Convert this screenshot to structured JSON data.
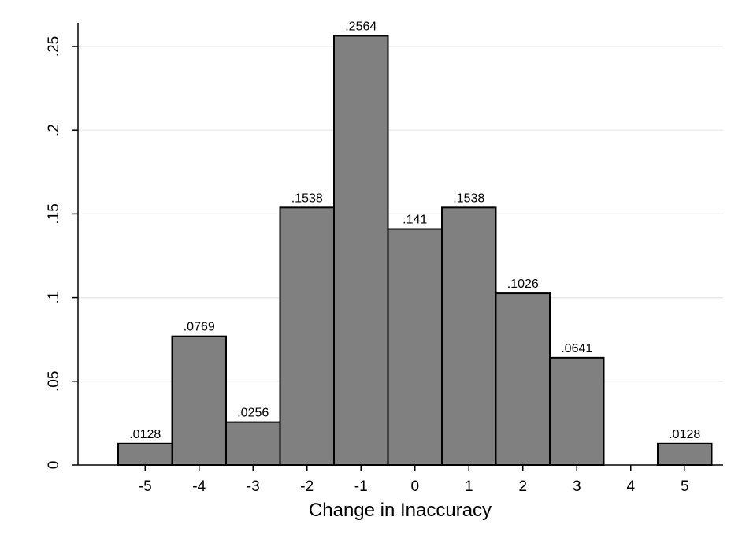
{
  "chart_data": {
    "type": "bar",
    "title": "",
    "xlabel": "Change in Inaccuracy",
    "ylabel": "",
    "categories": [
      "-5",
      "-4",
      "-3",
      "-2",
      "-1",
      "0",
      "1",
      "2",
      "3",
      "4",
      "5"
    ],
    "values": [
      0.0128,
      0.0769,
      0.0256,
      0.1538,
      0.2564,
      0.141,
      0.1538,
      0.1026,
      0.0641,
      0,
      0.0128
    ],
    "data_labels": [
      ".0128",
      ".0769",
      ".0256",
      ".1538",
      ".2564",
      ".141",
      ".1538",
      ".1026",
      ".0641",
      "",
      ".0128"
    ],
    "ylim": [
      0,
      0.26
    ],
    "yticks": [
      0,
      0.05,
      0.1,
      0.15,
      0.2,
      0.25
    ],
    "ytick_labels": [
      "0",
      ".05",
      ".1",
      ".15",
      ".2",
      ".25"
    ],
    "grid": true,
    "legend": "none",
    "colors": {
      "bar_fill": "#808080",
      "bar_stroke": "#000000",
      "grid": "#e6e6e6",
      "axis": "#000000",
      "background": "#ffffff"
    }
  }
}
